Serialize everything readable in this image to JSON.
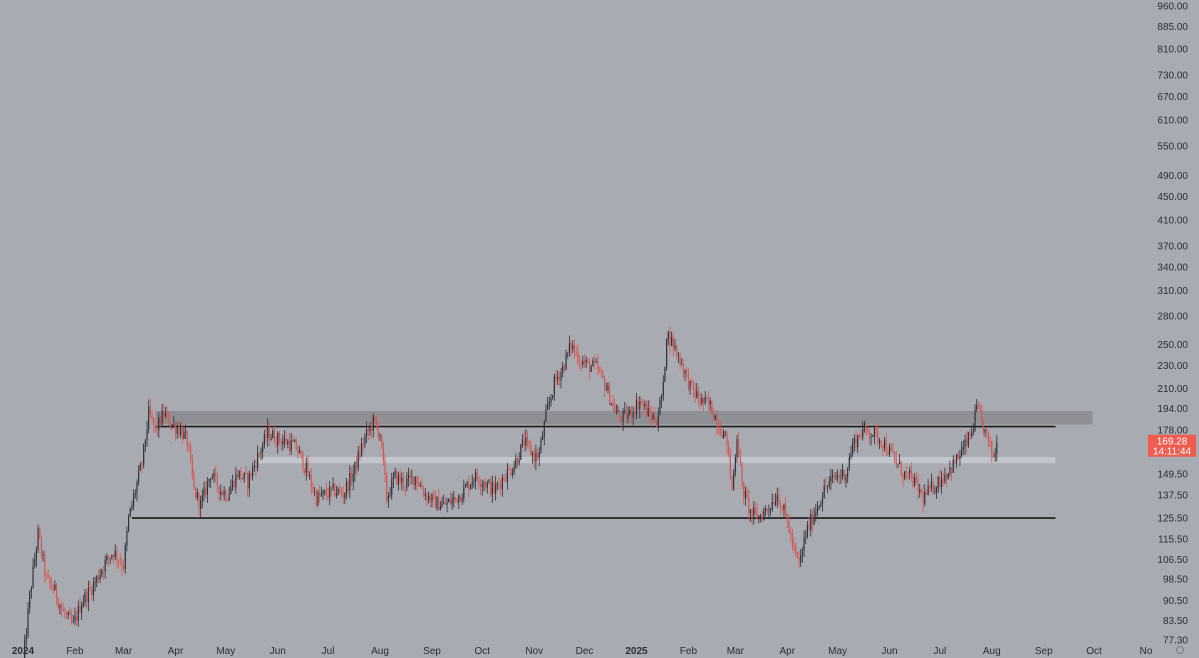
{
  "chart_data": {
    "type": "candlestick",
    "y_scale": "log",
    "y_ticks": [
      "960.00",
      "885.00",
      "810.00",
      "730.00",
      "670.00",
      "610.00",
      "550.00",
      "490.00",
      "450.00",
      "410.00",
      "370.00",
      "340.00",
      "310.00",
      "280.00",
      "250.00",
      "230.00",
      "210.00",
      "194.00",
      "178.00",
      "163.00",
      "149.50",
      "137.50",
      "125.50",
      "115.50",
      "106.50",
      "98.50",
      "90.50",
      "83.50",
      "77.30"
    ],
    "x_ticks": [
      {
        "label": "2024",
        "date": "2024-01",
        "bold": true
      },
      {
        "label": "Feb",
        "date": "2024-02"
      },
      {
        "label": "Mar",
        "date": "2024-03"
      },
      {
        "label": "Apr",
        "date": "2024-04"
      },
      {
        "label": "May",
        "date": "2024-05"
      },
      {
        "label": "Jun",
        "date": "2024-06"
      },
      {
        "label": "Jul",
        "date": "2024-07"
      },
      {
        "label": "Aug",
        "date": "2024-08"
      },
      {
        "label": "Sep",
        "date": "2024-09"
      },
      {
        "label": "Oct",
        "date": "2024-10"
      },
      {
        "label": "Nov",
        "date": "2024-11"
      },
      {
        "label": "Dec",
        "date": "2024-12"
      },
      {
        "label": "2025",
        "date": "2025-01",
        "bold": true
      },
      {
        "label": "Feb",
        "date": "2025-02"
      },
      {
        "label": "Mar",
        "date": "2025-03"
      },
      {
        "label": "Apr",
        "date": "2025-04"
      },
      {
        "label": "May",
        "date": "2025-05"
      },
      {
        "label": "Jun",
        "date": "2025-06"
      },
      {
        "label": "Jul",
        "date": "2025-07"
      },
      {
        "label": "Aug",
        "date": "2025-08"
      },
      {
        "label": "Sep",
        "date": "2025-09"
      },
      {
        "label": "Oct",
        "date": "2025-10"
      },
      {
        "label": "No",
        "date": "2025-11"
      }
    ],
    "price_path": [
      [
        "2024-01-01",
        70
      ],
      [
        "2024-01-05",
        92
      ],
      [
        "2024-01-10",
        118
      ],
      [
        "2024-01-15",
        98
      ],
      [
        "2024-01-20",
        94
      ],
      [
        "2024-01-25",
        86
      ],
      [
        "2024-01-31",
        82
      ],
      [
        "2024-02-05",
        90
      ],
      [
        "2024-02-12",
        96
      ],
      [
        "2024-02-18",
        104
      ],
      [
        "2024-02-24",
        110
      ],
      [
        "2024-03-01",
        104
      ],
      [
        "2024-03-04",
        125
      ],
      [
        "2024-03-08",
        140
      ],
      [
        "2024-03-12",
        156
      ],
      [
        "2024-03-16",
        190
      ],
      [
        "2024-03-20",
        178
      ],
      [
        "2024-03-25",
        190
      ],
      [
        "2024-03-30",
        182
      ],
      [
        "2024-04-04",
        178
      ],
      [
        "2024-04-08",
        170
      ],
      [
        "2024-04-12",
        140
      ],
      [
        "2024-04-16",
        132
      ],
      [
        "2024-04-22",
        150
      ],
      [
        "2024-04-28",
        140
      ],
      [
        "2024-05-02",
        138
      ],
      [
        "2024-05-08",
        150
      ],
      [
        "2024-05-14",
        145
      ],
      [
        "2024-05-20",
        160
      ],
      [
        "2024-05-26",
        176
      ],
      [
        "2024-06-01",
        172
      ],
      [
        "2024-06-06",
        170
      ],
      [
        "2024-06-12",
        166
      ],
      [
        "2024-06-18",
        152
      ],
      [
        "2024-06-24",
        136
      ],
      [
        "2024-06-30",
        138
      ],
      [
        "2024-07-05",
        140
      ],
      [
        "2024-07-10",
        138
      ],
      [
        "2024-07-16",
        150
      ],
      [
        "2024-07-22",
        170
      ],
      [
        "2024-07-28",
        184
      ],
      [
        "2024-08-01",
        176
      ],
      [
        "2024-08-05",
        136
      ],
      [
        "2024-08-10",
        148
      ],
      [
        "2024-08-16",
        144
      ],
      [
        "2024-08-22",
        148
      ],
      [
        "2024-08-28",
        138
      ],
      [
        "2024-09-02",
        134
      ],
      [
        "2024-09-08",
        132
      ],
      [
        "2024-09-14",
        135
      ],
      [
        "2024-09-20",
        140
      ],
      [
        "2024-09-26",
        148
      ],
      [
        "2024-10-02",
        145
      ],
      [
        "2024-10-08",
        140
      ],
      [
        "2024-10-14",
        148
      ],
      [
        "2024-10-20",
        155
      ],
      [
        "2024-10-26",
        170
      ],
      [
        "2024-11-01",
        160
      ],
      [
        "2024-11-04",
        162
      ],
      [
        "2024-11-08",
        188
      ],
      [
        "2024-11-13",
        215
      ],
      [
        "2024-11-18",
        228
      ],
      [
        "2024-11-23",
        250
      ],
      [
        "2024-11-28",
        236
      ],
      [
        "2024-12-03",
        230
      ],
      [
        "2024-12-08",
        228
      ],
      [
        "2024-12-13",
        214
      ],
      [
        "2024-12-18",
        196
      ],
      [
        "2024-12-22",
        186
      ],
      [
        "2024-12-28",
        190
      ],
      [
        "2025-01-03",
        200
      ],
      [
        "2025-01-08",
        190
      ],
      [
        "2025-01-13",
        185
      ],
      [
        "2025-01-17",
        210
      ],
      [
        "2025-01-19",
        262
      ],
      [
        "2025-01-23",
        250
      ],
      [
        "2025-01-28",
        232
      ],
      [
        "2025-02-02",
        212
      ],
      [
        "2025-02-08",
        200
      ],
      [
        "2025-02-14",
        196
      ],
      [
        "2025-02-20",
        180
      ],
      [
        "2025-02-24",
        170
      ],
      [
        "2025-02-27",
        140
      ],
      [
        "2025-03-02",
        175
      ],
      [
        "2025-03-05",
        142
      ],
      [
        "2025-03-10",
        128
      ],
      [
        "2025-03-15",
        126
      ],
      [
        "2025-03-20",
        130
      ],
      [
        "2025-03-26",
        138
      ],
      [
        "2025-04-01",
        124
      ],
      [
        "2025-04-05",
        110
      ],
      [
        "2025-04-08",
        104
      ],
      [
        "2025-04-12",
        118
      ],
      [
        "2025-04-18",
        130
      ],
      [
        "2025-04-24",
        142
      ],
      [
        "2025-04-30",
        148
      ],
      [
        "2025-05-06",
        150
      ],
      [
        "2025-05-10",
        168
      ],
      [
        "2025-05-16",
        178
      ],
      [
        "2025-05-22",
        176
      ],
      [
        "2025-05-28",
        170
      ],
      [
        "2025-06-03",
        160
      ],
      [
        "2025-06-09",
        150
      ],
      [
        "2025-06-15",
        146
      ],
      [
        "2025-06-21",
        136
      ],
      [
        "2025-06-27",
        142
      ],
      [
        "2025-07-03",
        148
      ],
      [
        "2025-07-09",
        155
      ],
      [
        "2025-07-15",
        165
      ],
      [
        "2025-07-20",
        176
      ],
      [
        "2025-07-23",
        194
      ],
      [
        "2025-07-27",
        180
      ],
      [
        "2025-07-31",
        166
      ],
      [
        "2025-08-02",
        160
      ],
      [
        "2025-08-04",
        169.28
      ]
    ],
    "levels": [
      {
        "type": "zone",
        "low": 182,
        "high": 192,
        "from": "2024-03-20",
        "to": "2025-09-30",
        "color": "#8e9096"
      },
      {
        "type": "line",
        "value": 180.5,
        "from": "2024-03-20",
        "to": "2025-09-08",
        "color": "#1a1a1a"
      },
      {
        "type": "zone",
        "low": 156,
        "high": 160,
        "from": "2024-05-20",
        "to": "2025-09-08",
        "color": "#c3c5cc"
      },
      {
        "type": "line",
        "value": 125.5,
        "from": "2024-03-06",
        "to": "2025-09-08",
        "color": "#1a1a1a"
      }
    ],
    "last_price": {
      "value": "169.28",
      "countdown": "14:11:44",
      "color": "#ef5b4f"
    },
    "colors": {
      "up": "#2e3038",
      "down": "#d9544b",
      "background": "#a9abb3"
    }
  }
}
